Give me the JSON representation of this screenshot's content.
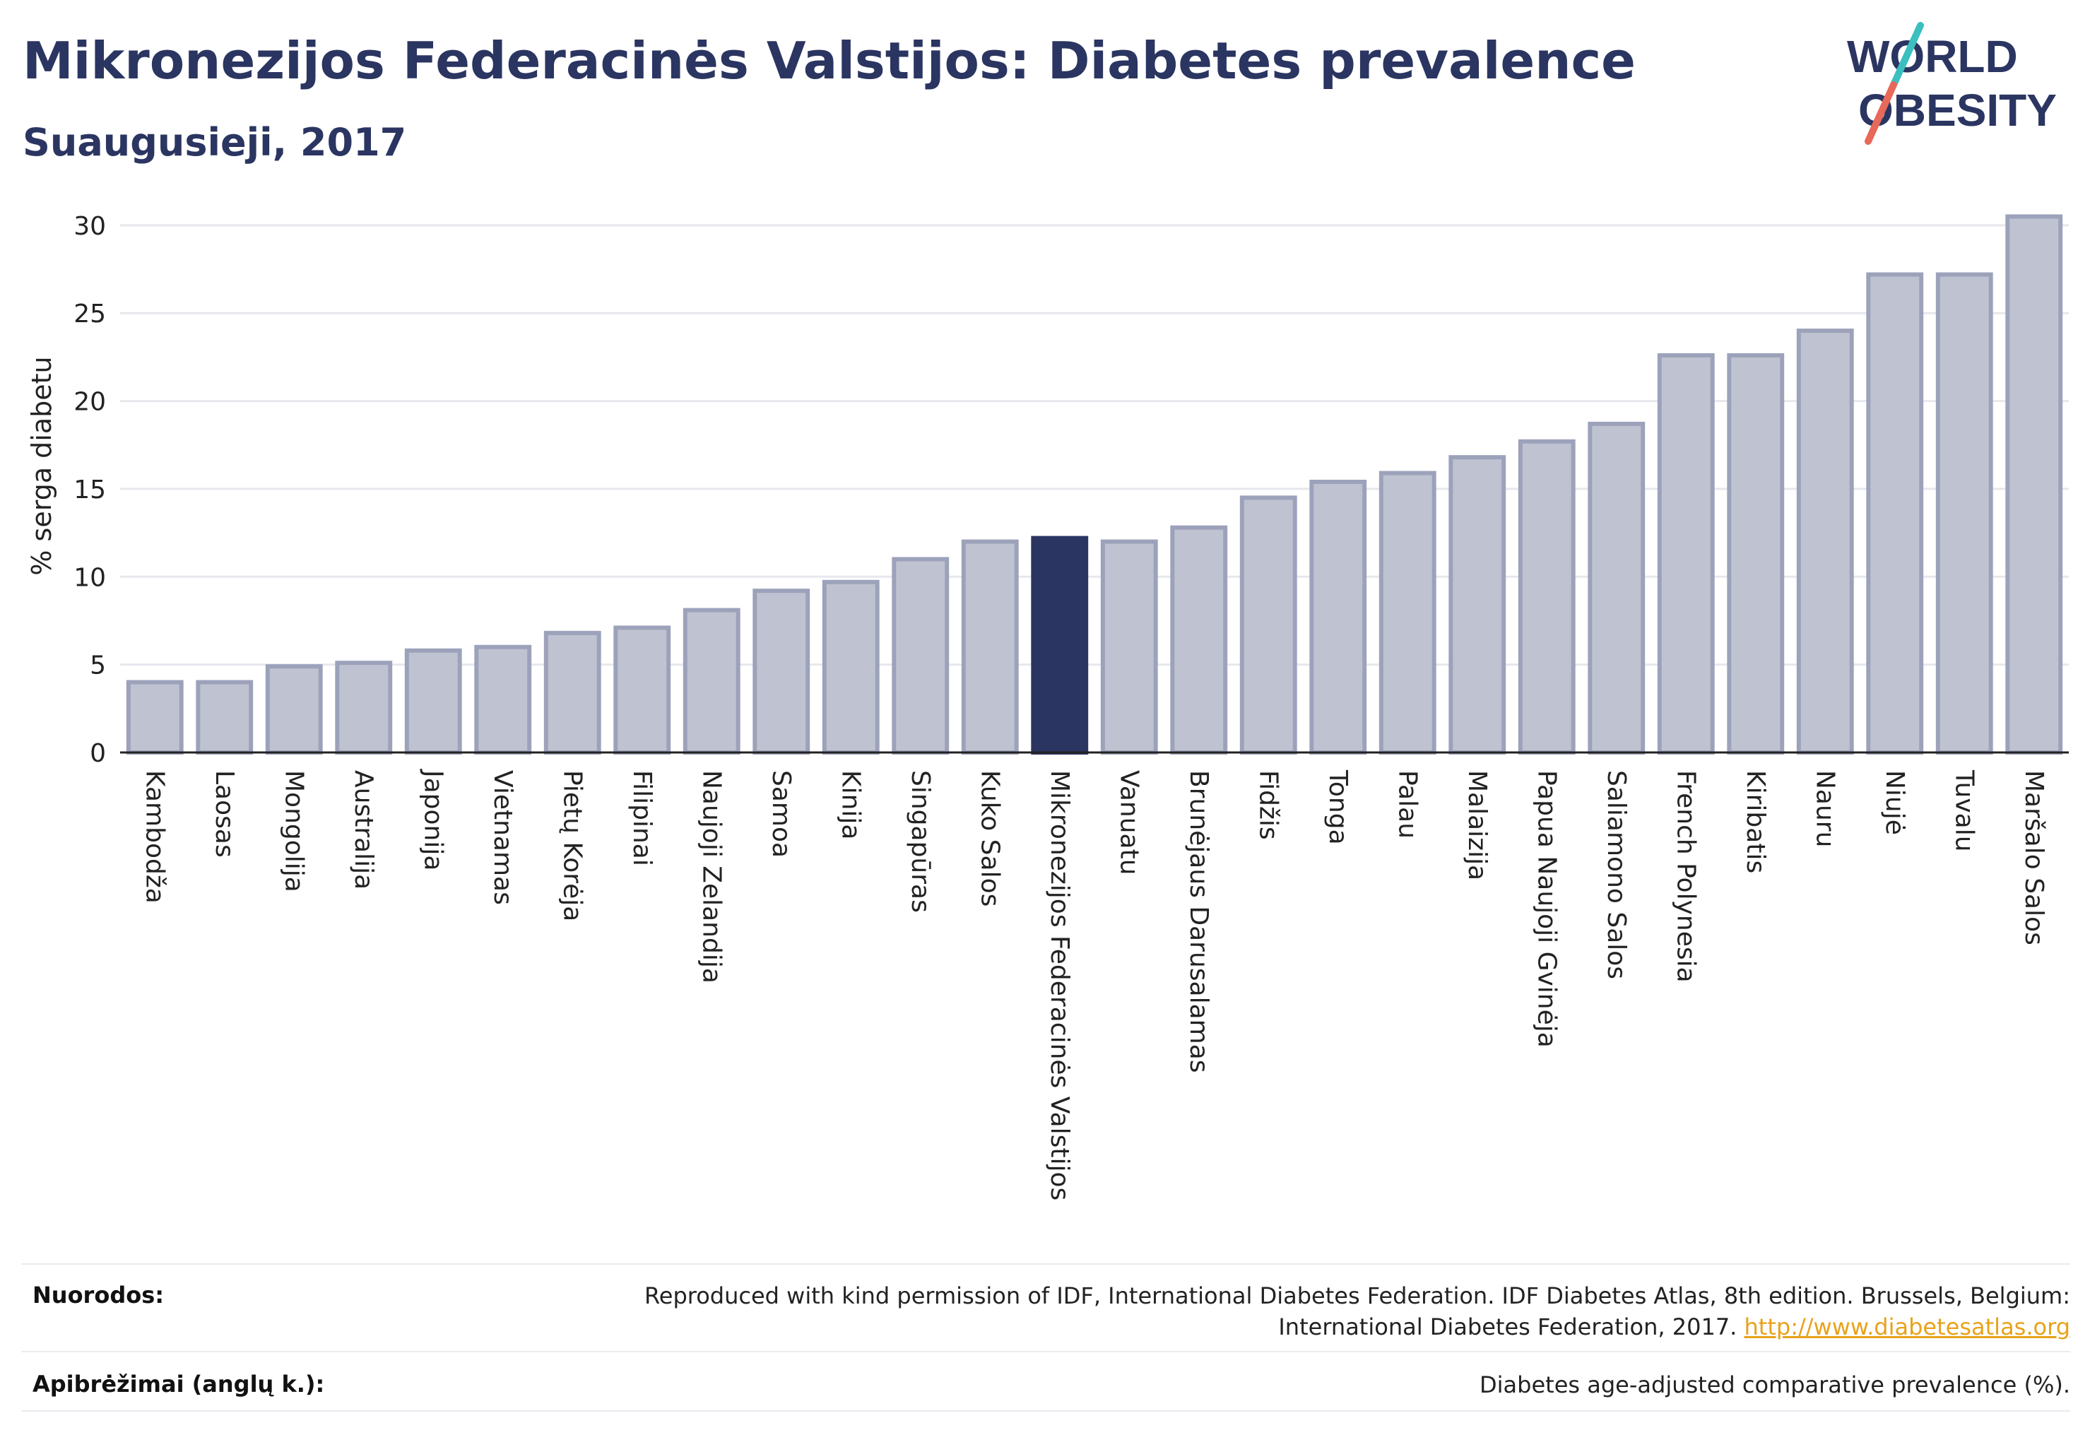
{
  "header": {
    "title": "Mikronezijos Federacinės Valstijos: Diabetes prevalence",
    "subtitle": "Suaugusieji, 2017"
  },
  "logo": {
    "line1": "WORLD",
    "line2": "OBESITY",
    "colors": {
      "text": "#2b3561",
      "slash_top": "#3bbfbf",
      "slash_bottom": "#e8685a"
    }
  },
  "chart_data": {
    "type": "bar",
    "ylabel": "% serga diabetu",
    "ylim": [
      0,
      31
    ],
    "yticks": [
      0,
      5,
      10,
      15,
      20,
      25,
      30
    ],
    "grid": true,
    "highlight": "Mikronezijos Federacinės Valstijos",
    "colors": {
      "bar": "#bfc2d0",
      "bar_stroke": "#9da2bb",
      "highlight": "#2b3561"
    },
    "categories": [
      "Kambodža",
      "Laosas",
      "Mongolija",
      "Australija",
      "Japonija",
      "Vietnamas",
      "Pietų Korėja",
      "Filipinai",
      "Naujoji Zelandija",
      "Samoa",
      "Kinija",
      "Singapūras",
      "Kuko Salos",
      "Mikronezijos Federacinės Valstijos",
      "Vanuatu",
      "Brunėjaus Darusalamas",
      "Fidžis",
      "Tonga",
      "Palau",
      "Malaizija",
      "Papua Naujoji Gvinėja",
      "Saliamono Salos",
      "French Polynesia",
      "Kiribatis",
      "Nauru",
      "Niujė",
      "Tuvalu",
      "Maršalo Salos"
    ],
    "values": [
      4.0,
      4.0,
      4.9,
      5.1,
      5.8,
      6.0,
      6.8,
      7.1,
      8.1,
      9.2,
      9.7,
      11.0,
      12.0,
      12.2,
      12.0,
      12.8,
      14.5,
      15.4,
      15.9,
      16.8,
      17.7,
      18.7,
      22.6,
      22.6,
      24.0,
      27.2,
      27.2,
      30.5
    ]
  },
  "footer": {
    "references_label": "Nuorodos:",
    "references_text": "Reproduced with kind permission of IDF, International Diabetes Federation. IDF Diabetes Atlas, 8th edition. Brussels, Belgium:",
    "references_text2": "International Diabetes Federation, 2017.",
    "references_link": "http://www.diabetesatlas.org",
    "definitions_label": "Apibrėžimai (anglų k.):",
    "definitions_text": "Diabetes age-adjusted comparative prevalence (%)."
  }
}
